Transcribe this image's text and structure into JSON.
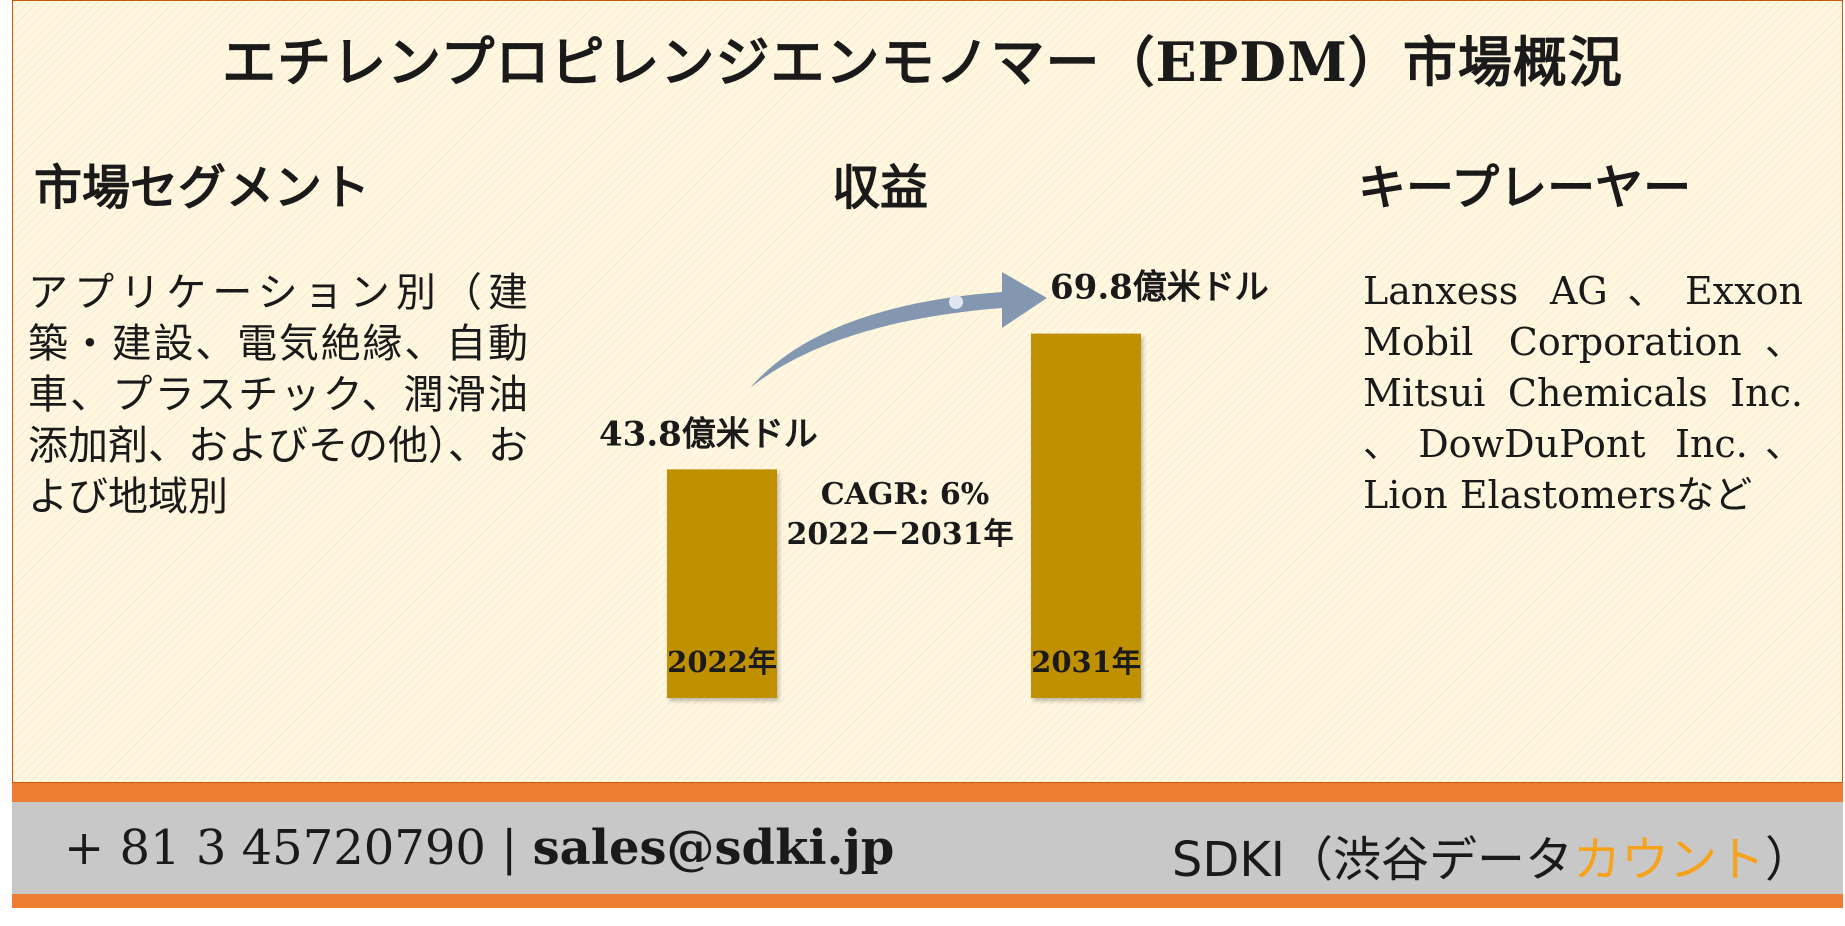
{
  "title": "エチレンプロピレンジエンモノマー（EPDM）市場概況",
  "segments": {
    "heading": "市場セグメント",
    "text": "アプリケーション別（建築・建設、電気絶縁、自動車、プラスチック、潤滑油添加剤、およびその他）、および地域別"
  },
  "revenue": {
    "heading": "収益"
  },
  "key_players": {
    "heading": "キープレーヤー",
    "text": "Lanxess AG、Exxon Mobil Corporation、Mitsui Chemicals Inc. 、DowDuPont Inc.、Lion Elastomersなど"
  },
  "chart_data": {
    "type": "bar",
    "categories": [
      "2022年",
      "2031年"
    ],
    "values": [
      43.8,
      69.8
    ],
    "value_labels": [
      "43.8億米ドル",
      "69.8億米ドル"
    ],
    "unit": "億米ドル",
    "cagr_label": "CAGR: 6%",
    "cagr_period": "2022－2031年",
    "bar_color": "#bf9000",
    "arrow_color": "#8497b0"
  },
  "footer": {
    "phone": "+ 81 3 45720790 | ",
    "email": "sales@sdki.jp",
    "brand_main": "SDKI（渋谷データ",
    "brand_accent": "カウント",
    "brand_end": "）",
    "accent_color": "#f7a21b",
    "stripe_color": "#ed7d31"
  }
}
